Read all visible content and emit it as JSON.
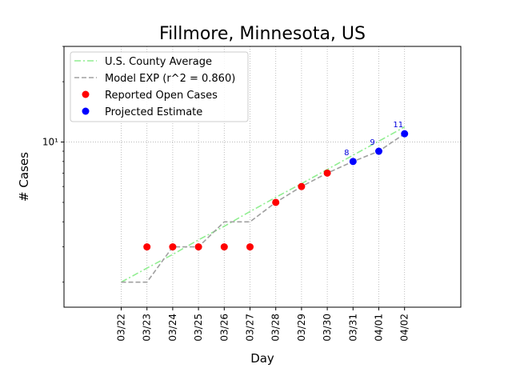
{
  "chart_data": {
    "type": "line",
    "title": "Fillmore, Minnesota, US",
    "xlabel": "Day",
    "ylabel": "# Cases",
    "y_scale": "log",
    "ylim": [
      1.5,
      30
    ],
    "y_ticks": [
      {
        "value": 10,
        "label": "10¹"
      }
    ],
    "grid": "dotted",
    "legend_position": "top-left",
    "categories": [
      "03/22",
      "03/23",
      "03/24",
      "03/25",
      "03/26",
      "03/27",
      "03/28",
      "03/29",
      "03/30",
      "03/31",
      "04/01",
      "04/02"
    ],
    "series": [
      {
        "name": "U.S. County Average",
        "style": "dash-dot",
        "color": "#90ee90",
        "x": [
          "03/22",
          "03/23",
          "03/24",
          "03/25",
          "03/26",
          "03/27",
          "03/28",
          "03/29",
          "03/30",
          "03/31",
          "04/01",
          "04/02"
        ],
        "values": [
          2.0,
          2.35,
          2.75,
          3.25,
          3.8,
          4.5,
          5.3,
          6.2,
          7.3,
          8.6,
          10.1,
          11.9
        ]
      },
      {
        "name": "Model EXP (r^2 = 0.860)",
        "style": "dashed",
        "color": "#a0a0a0",
        "x": [
          "03/22",
          "03/23",
          "03/24",
          "03/25",
          "03/26",
          "03/27",
          "03/28",
          "03/29",
          "03/30",
          "03/31",
          "04/01",
          "04/02"
        ],
        "values": [
          2,
          2,
          3,
          3,
          4,
          4,
          5,
          6,
          7,
          8,
          9,
          11
        ]
      },
      {
        "name": "Reported Open Cases",
        "style": "marker",
        "color": "#ff0000",
        "x": [
          "03/23",
          "03/24",
          "03/25",
          "03/26",
          "03/27",
          "03/28",
          "03/29",
          "03/30"
        ],
        "values": [
          3,
          3,
          3,
          3,
          3,
          5,
          6,
          7
        ]
      },
      {
        "name": "Projected Estimate",
        "style": "marker",
        "color": "#0000ff",
        "x": [
          "03/31",
          "04/01",
          "04/02"
        ],
        "values": [
          8,
          9,
          11
        ],
        "data_labels": [
          "8",
          "9",
          "11"
        ]
      }
    ]
  }
}
